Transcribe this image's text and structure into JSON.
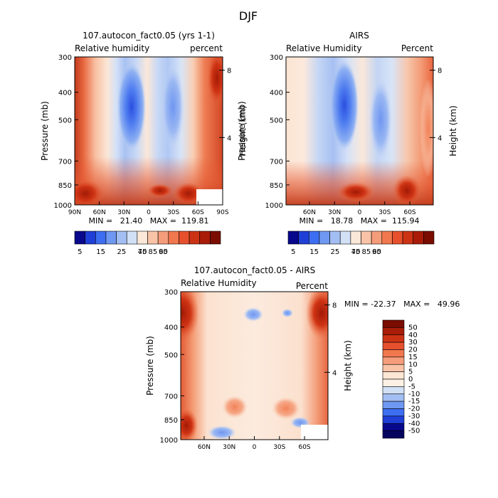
{
  "chart_data": {
    "type": "heatmap",
    "title": "DJF",
    "y_ticks": [
      "300",
      "400",
      "500",
      "700",
      "850",
      "1000"
    ],
    "y_label": "Pressure (mb)",
    "y2_ticks": [
      "8",
      "4"
    ],
    "y2_label": "Height (km)",
    "panels": [
      {
        "title": "107.autocon_fact0.05 (yrs 1-1)",
        "subtitle_left": "Relative humidity",
        "subtitle_right": "percent",
        "x_ticks": [
          "90N",
          "60N",
          "30N",
          "0",
          "30S",
          "60S",
          "90S"
        ],
        "stats": "MIN =   21.40   MAX =  119.81",
        "min": 21.4,
        "max": 119.81
      },
      {
        "title": "AIRS",
        "subtitle_left": "Relative Humidity",
        "subtitle_right": "Percent",
        "x_ticks": [
          "60N",
          "30N",
          "0",
          "30S",
          "60S"
        ],
        "stats": "MIN =   18.78   MAX =  115.94",
        "min": 18.78,
        "max": 115.94
      },
      {
        "title": "107.autocon_fact0.05 - AIRS",
        "subtitle_left": "Relative Humidity",
        "subtitle_right": "Percent",
        "x_ticks": [
          "60N",
          "30N",
          "0",
          "30S",
          "60S"
        ],
        "stats": "MIN = -22.37   MAX =   49.96",
        "min": -22.37,
        "max": 49.96
      }
    ],
    "colorbar_abs": {
      "labels": [
        "5",
        "15",
        "25",
        "40",
        "60",
        "75",
        "85",
        "95"
      ],
      "colors": [
        "#08088c",
        "#1f3fd6",
        "#3d6ef2",
        "#6f98f2",
        "#a3bef2",
        "#d2e0f6",
        "#fbe8d8",
        "#f8c3a6",
        "#f59c7a",
        "#f1774e",
        "#e7502c",
        "#cc3314",
        "#a81c08",
        "#7a0c00"
      ]
    },
    "colorbar_diff": {
      "labels": [
        "50",
        "40",
        "30",
        "20",
        "15",
        "10",
        "5",
        "0",
        "-5",
        "-10",
        "-15",
        "-20",
        "-30",
        "-40",
        "-50"
      ],
      "colors": [
        "#7a0c00",
        "#a81c08",
        "#cc3314",
        "#e7502c",
        "#f1774e",
        "#f59c7a",
        "#f8c3a6",
        "#fde6d4",
        "#fdf0e4",
        "#d2e0f6",
        "#a3bef2",
        "#6f98f2",
        "#3d6ef2",
        "#1f3fd6",
        "#08088c",
        "#050560"
      ]
    }
  }
}
